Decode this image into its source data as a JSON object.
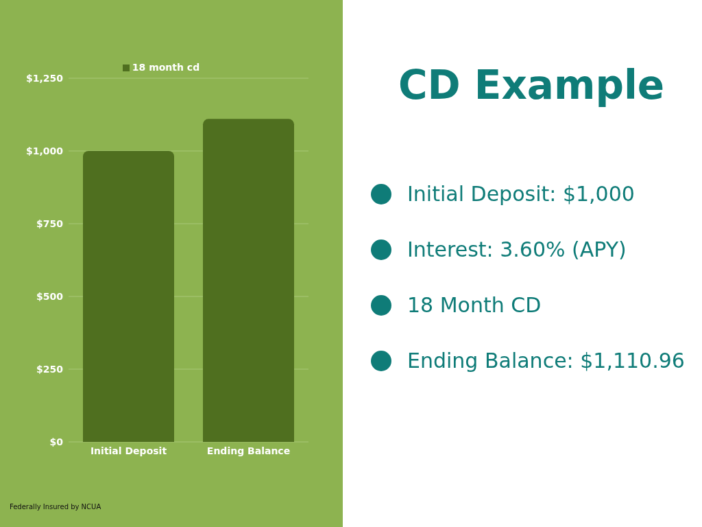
{
  "chart_data": {
    "type": "bar",
    "title": "CD Example",
    "categories": [
      "Initial Deposit",
      "Ending Balance"
    ],
    "series": [
      {
        "name": "18 month cd",
        "color": "#4f6f1f",
        "values": [
          1000,
          1110
        ]
      }
    ],
    "ylim": [
      0,
      1250
    ],
    "yticks": [
      {
        "value": 0,
        "label": "$0"
      },
      {
        "value": 250,
        "label": "$250"
      },
      {
        "value": 500,
        "label": "$500"
      },
      {
        "value": 750,
        "label": "$750"
      },
      {
        "value": 1000,
        "label": "$1,000"
      },
      {
        "value": 1250,
        "label": "$1,250"
      }
    ],
    "grid": "y",
    "legend": "top",
    "annotations": [
      "Initial Deposit: $1,000",
      "Interest: 3.60% (APY)",
      "18 Month CD",
      "Ending Balance: $1,110.96",
      "Federally Insured by NCUA"
    ]
  }
}
